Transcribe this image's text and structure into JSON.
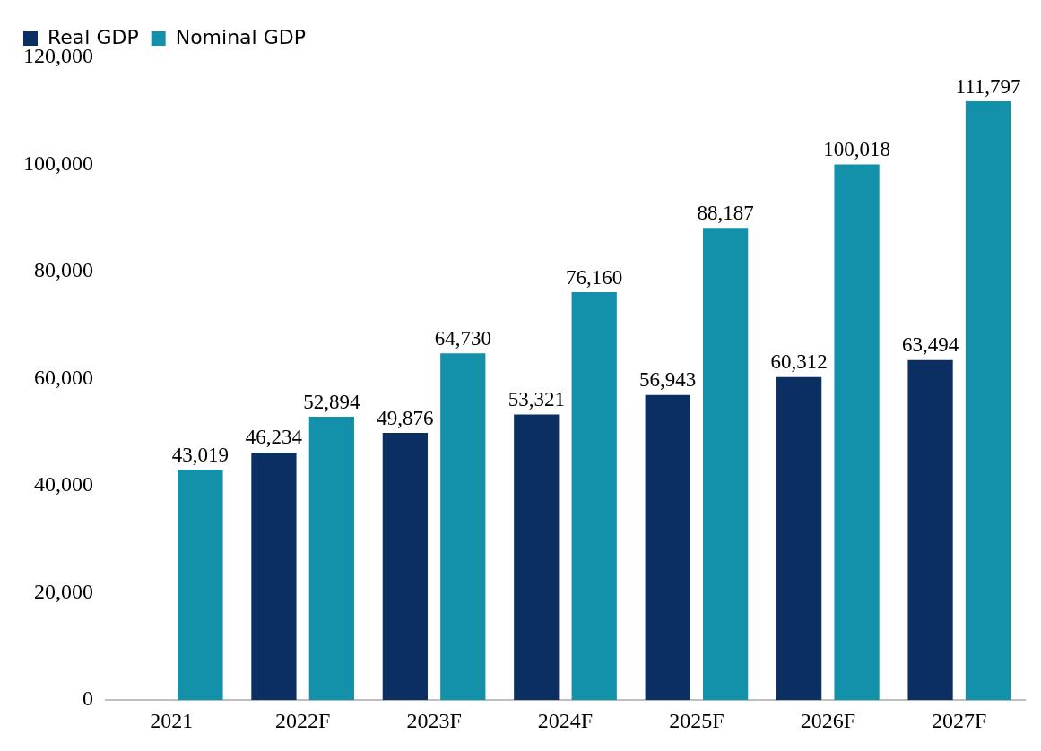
{
  "chart_data": {
    "type": "bar",
    "categories": [
      "2021",
      "2022F",
      "2023F",
      "2024F",
      "2025F",
      "2026F",
      "2027F"
    ],
    "series": [
      {
        "name": "Real GDP",
        "color": "#0b2f63",
        "values": [
          null,
          46234,
          49876,
          53321,
          56943,
          60312,
          63494
        ],
        "value_labels": [
          null,
          "46,234",
          "49,876",
          "53,321",
          "56,943",
          "60,312",
          "63,494"
        ]
      },
      {
        "name": "Nominal GDP",
        "color": "#1390aa",
        "values": [
          43019,
          52894,
          64730,
          76160,
          88187,
          100018,
          111797
        ],
        "value_labels": [
          "43,019",
          "52,894",
          "64,730",
          "76,160",
          "88,187",
          "100,018",
          "111,797"
        ]
      }
    ],
    "ylim": [
      0,
      120000
    ],
    "yticks": [
      {
        "value": 0,
        "label": "0"
      },
      {
        "value": 20000,
        "label": "20,000"
      },
      {
        "value": 40000,
        "label": "40,000"
      },
      {
        "value": 60000,
        "label": "60,000"
      },
      {
        "value": 80000,
        "label": "80,000"
      },
      {
        "value": 100000,
        "label": "100,000"
      },
      {
        "value": 120000,
        "label": "120,000"
      }
    ],
    "grid": false,
    "legend": "top left"
  }
}
